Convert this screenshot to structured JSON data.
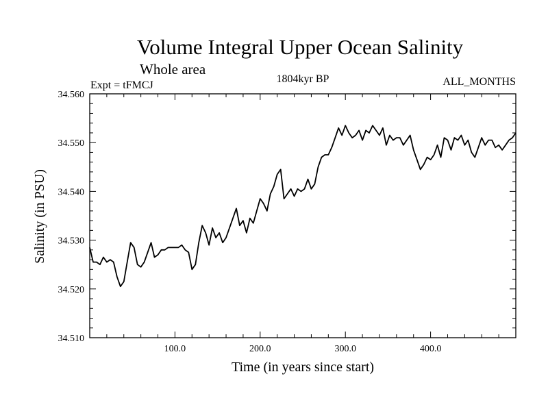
{
  "chart_data": {
    "type": "line",
    "title": "Volume Integral Upper Ocean Salinity",
    "subtitle": "Whole area",
    "experiment_label": "Expt = tFMCJ",
    "period_label": "1804kyr BP",
    "months_label": "ALL_MONTHS",
    "xlabel": "Time (in years since start)",
    "ylabel": "Salinity (in PSU)",
    "xlim": [
      0,
      500
    ],
    "ylim": [
      34.51,
      34.56
    ],
    "x_ticks": [
      100,
      200,
      300,
      400
    ],
    "x_tick_labels": [
      "100.0",
      "200.0",
      "300.0",
      "400.0"
    ],
    "y_ticks": [
      34.51,
      34.52,
      34.53,
      34.54,
      34.55,
      34.56
    ],
    "y_tick_labels": [
      "34.510",
      "34.520",
      "34.530",
      "34.540",
      "34.550",
      "34.560"
    ],
    "grid": false,
    "series": [
      {
        "name": "Volume integral upper ocean salinity",
        "color": "#000000",
        "x": [
          0,
          4,
          8,
          12,
          16,
          20,
          24,
          28,
          32,
          36,
          40,
          44,
          48,
          52,
          56,
          60,
          64,
          68,
          72,
          76,
          80,
          84,
          88,
          92,
          96,
          100,
          104,
          108,
          112,
          116,
          120,
          124,
          128,
          132,
          136,
          140,
          144,
          148,
          152,
          156,
          160,
          164,
          168,
          172,
          176,
          180,
          184,
          188,
          192,
          196,
          200,
          204,
          208,
          212,
          216,
          220,
          224,
          228,
          232,
          236,
          240,
          244,
          248,
          252,
          256,
          260,
          264,
          268,
          272,
          276,
          280,
          284,
          288,
          292,
          296,
          300,
          304,
          308,
          312,
          316,
          320,
          324,
          328,
          332,
          336,
          340,
          344,
          348,
          352,
          356,
          360,
          364,
          368,
          372,
          376,
          380,
          384,
          388,
          392,
          396,
          400,
          404,
          408,
          412,
          416,
          420,
          424,
          428,
          432,
          436,
          440,
          444,
          448,
          452,
          456,
          460,
          464,
          468,
          472,
          476,
          480,
          484,
          488,
          492,
          496,
          500
        ],
        "values": [
          34.5285,
          34.5255,
          34.5255,
          34.525,
          34.5265,
          34.5255,
          34.526,
          34.5255,
          34.5225,
          34.5205,
          34.5215,
          34.5255,
          34.5295,
          34.5285,
          34.525,
          34.5245,
          34.5255,
          34.5275,
          34.5295,
          34.5265,
          34.527,
          34.528,
          34.528,
          34.5285,
          34.5285,
          34.5285,
          34.5285,
          34.529,
          34.528,
          34.5275,
          34.524,
          34.525,
          34.5295,
          34.533,
          34.5315,
          34.529,
          34.5325,
          34.5305,
          34.5315,
          34.5295,
          34.5305,
          34.5325,
          34.5345,
          34.5365,
          34.533,
          34.534,
          34.5315,
          34.5345,
          34.5335,
          34.536,
          34.5385,
          34.5375,
          34.536,
          34.5395,
          34.541,
          34.5435,
          34.5445,
          34.5385,
          34.5395,
          34.5405,
          34.539,
          34.5405,
          34.54,
          34.5405,
          34.5425,
          34.5405,
          34.5415,
          34.545,
          34.547,
          34.5475,
          34.5475,
          34.549,
          34.551,
          34.553,
          34.5515,
          34.5535,
          34.552,
          34.551,
          34.5515,
          34.5525,
          34.5505,
          34.5525,
          34.552,
          34.5535,
          34.5525,
          34.5515,
          34.553,
          34.5495,
          34.5515,
          34.5505,
          34.551,
          34.551,
          34.5495,
          34.5505,
          34.5515,
          34.5485,
          34.5465,
          34.5445,
          34.5455,
          34.547,
          34.5465,
          34.5475,
          34.5495,
          34.547,
          34.551,
          34.5505,
          34.5485,
          34.551,
          34.5505,
          34.5515,
          34.5495,
          34.5505,
          34.548,
          34.547,
          34.549,
          34.551,
          34.5495,
          34.5505,
          34.5505,
          34.549,
          34.5495,
          34.5485,
          34.5495,
          34.5505,
          34.551,
          34.552
        ]
      }
    ]
  }
}
